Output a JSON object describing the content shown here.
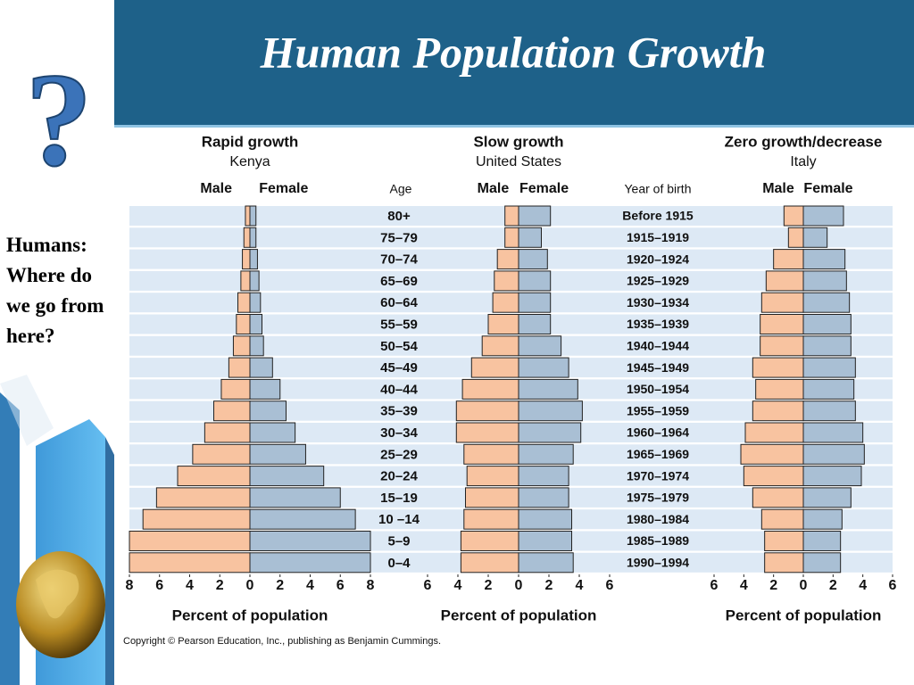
{
  "slide": {
    "title": "Human Population Growth",
    "side_text": "Humans: Where do we go from here?",
    "copyright": "Copyright © Pearson Education, Inc., publishing as Benjamin Cummings."
  },
  "chart_data": [
    {
      "type": "population_pyramid",
      "title": "Rapid growth",
      "subtitle": "Kenya",
      "series": [
        {
          "name": "Male",
          "color": "#f8c3a0",
          "values": [
            0.3,
            0.4,
            0.5,
            0.6,
            0.8,
            0.9,
            1.1,
            1.4,
            1.9,
            2.4,
            3.0,
            3.8,
            4.8,
            6.2,
            7.1,
            8.0,
            8.0
          ]
        },
        {
          "name": "Female",
          "color": "#a9bfd4",
          "values": [
            0.4,
            0.4,
            0.5,
            0.6,
            0.7,
            0.8,
            0.9,
            1.5,
            2.0,
            2.4,
            3.0,
            3.7,
            4.9,
            6.0,
            7.0,
            8.0,
            8.0
          ]
        }
      ],
      "xlim": [
        -8,
        8
      ],
      "xticks": [
        {
          "value": -8,
          "label": "8"
        },
        {
          "value": -6,
          "label": "6"
        },
        {
          "value": -4,
          "label": "4"
        },
        {
          "value": -2,
          "label": "2"
        },
        0,
        2,
        4,
        6,
        8
      ],
      "xlabel": "Percent of population"
    },
    {
      "type": "population_pyramid",
      "title": "Slow growth",
      "subtitle": "United States",
      "category_label": "Age",
      "categories": [
        "80+",
        "75–79",
        "70–74",
        "65–69",
        "60–64",
        "55–59",
        "50–54",
        "45–49",
        "40–44",
        "35–39",
        "30–34",
        "25–29",
        "20–24",
        "15–19",
        "10 –14",
        "5–9",
        "0–4"
      ],
      "years_label": "Year of birth",
      "years": [
        "Before 1915",
        "1915–1919",
        "1920–1924",
        "1925–1929",
        "1930–1934",
        "1935–1939",
        "1940–1944",
        "1945–1949",
        "1950–1954",
        "1955–1959",
        "1960–1964",
        "1965–1969",
        "1970–1974",
        "1975–1979",
        "1980–1984",
        "1985–1989",
        "1990–1994"
      ],
      "series": [
        {
          "name": "Male",
          "color": "#f8c3a0",
          "values": [
            0.9,
            0.9,
            1.4,
            1.6,
            1.7,
            2.0,
            2.4,
            3.1,
            3.7,
            4.1,
            4.1,
            3.6,
            3.4,
            3.5,
            3.6,
            3.8,
            3.8
          ]
        },
        {
          "name": "Female",
          "color": "#a9bfd4",
          "values": [
            2.1,
            1.5,
            1.9,
            2.1,
            2.1,
            2.1,
            2.8,
            3.3,
            3.9,
            4.2,
            4.1,
            3.6,
            3.3,
            3.3,
            3.5,
            3.5,
            3.6
          ]
        }
      ],
      "xlim": [
        -6,
        6
      ],
      "xticks": [
        {
          "value": -6,
          "label": "6"
        },
        {
          "value": -4,
          "label": "4"
        },
        {
          "value": -2,
          "label": "2"
        },
        0,
        2,
        4,
        6
      ],
      "xlabel": "Percent of population"
    },
    {
      "type": "population_pyramid",
      "title": "Zero growth/decrease",
      "subtitle": "Italy",
      "series": [
        {
          "name": "Male",
          "color": "#f8c3a0",
          "values": [
            1.3,
            1.0,
            2.0,
            2.5,
            2.8,
            2.9,
            2.9,
            3.4,
            3.2,
            3.4,
            3.9,
            4.2,
            4.0,
            3.4,
            2.8,
            2.6,
            2.6
          ]
        },
        {
          "name": "Female",
          "color": "#a9bfd4",
          "values": [
            2.7,
            1.6,
            2.8,
            2.9,
            3.1,
            3.2,
            3.2,
            3.5,
            3.4,
            3.5,
            4.0,
            4.1,
            3.9,
            3.2,
            2.6,
            2.5,
            2.5
          ]
        }
      ],
      "xlim": [
        -6,
        6
      ],
      "xticks": [
        {
          "value": -6,
          "label": "6"
        },
        {
          "value": -4,
          "label": "4"
        },
        {
          "value": -2,
          "label": "2"
        },
        0,
        2,
        4,
        6
      ],
      "xlabel": "Percent of population"
    }
  ]
}
